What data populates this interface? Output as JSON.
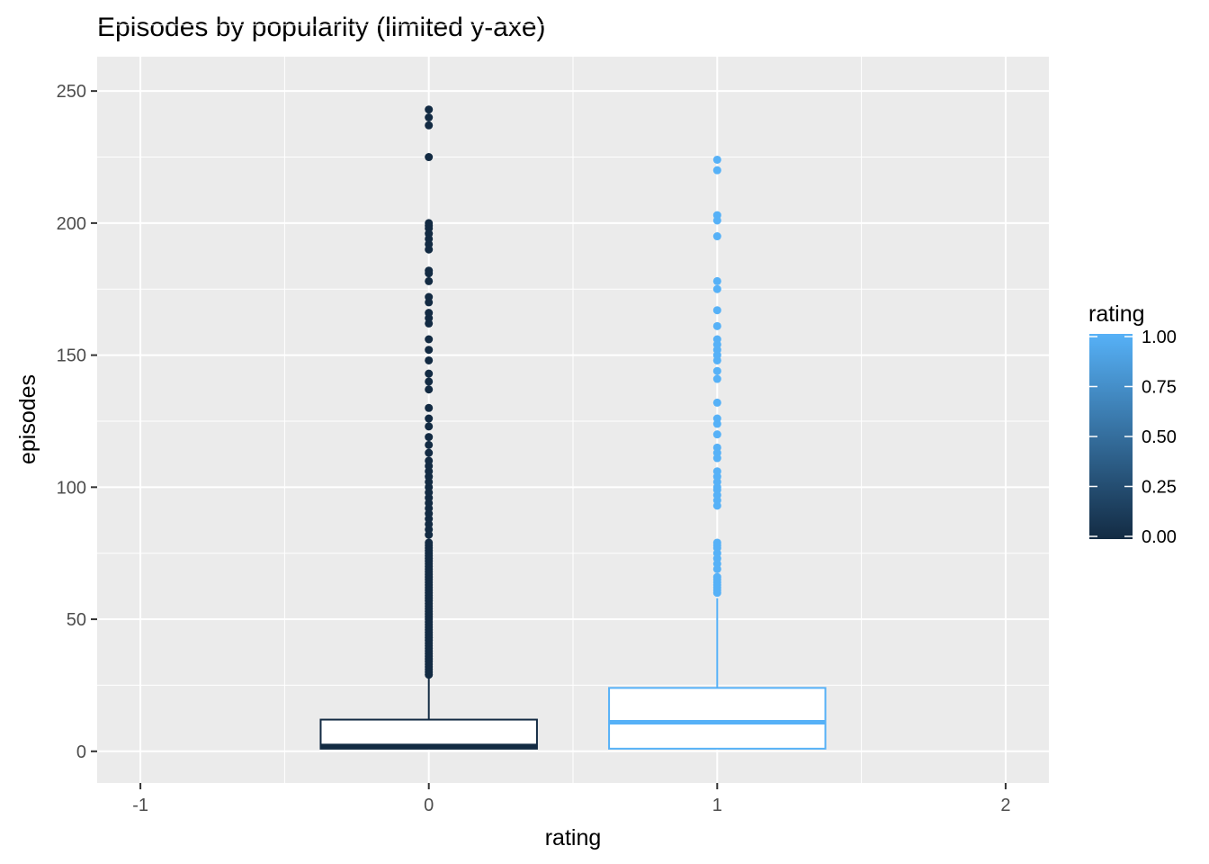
{
  "chart_data": {
    "type": "boxplot",
    "title": "Episodes by popularity (limited y-axe)",
    "xlabel": "rating",
    "ylabel": "episodes",
    "xlim": [
      -1.15,
      2.15
    ],
    "ylim": [
      -12,
      263
    ],
    "x_ticks": [
      -1,
      0,
      1,
      2
    ],
    "x_tick_labels": [
      "-1",
      "0",
      "1",
      "2"
    ],
    "y_ticks": [
      0,
      50,
      100,
      150,
      200,
      250
    ],
    "y_tick_labels": [
      "0",
      "50",
      "100",
      "150",
      "200",
      "250"
    ],
    "grid": true,
    "boxes": [
      {
        "x": 0,
        "color": "#132B43",
        "min": 1,
        "q1": 1,
        "median": 2,
        "q3": 12,
        "whisker_high": 28,
        "outliers": [
          29,
          30,
          31,
          32,
          33,
          34,
          35,
          36,
          37,
          38,
          39,
          40,
          41,
          42,
          43,
          44,
          45,
          46,
          47,
          48,
          49,
          50,
          51,
          52,
          53,
          54,
          55,
          56,
          57,
          58,
          59,
          60,
          61,
          62,
          63,
          64,
          65,
          66,
          67,
          68,
          69,
          70,
          71,
          72,
          73,
          74,
          75,
          76,
          77,
          78,
          79,
          82,
          84,
          86,
          88,
          90,
          92,
          94,
          96,
          98,
          100,
          102,
          104,
          106,
          108,
          110,
          113,
          116,
          119,
          123,
          126,
          130,
          137,
          140,
          143,
          148,
          152,
          156,
          162,
          164,
          166,
          170,
          172,
          178,
          181,
          182,
          190,
          192,
          194,
          196,
          198,
          199,
          200,
          225,
          237,
          240,
          243
        ]
      },
      {
        "x": 1,
        "color": "#56B1F7",
        "min": 1,
        "q1": 1,
        "median": 11,
        "q3": 24,
        "whisker_high": 58,
        "outliers": [
          60,
          61,
          62,
          63,
          64,
          65,
          66,
          69,
          71,
          73,
          75,
          77,
          78,
          79,
          93,
          95,
          97,
          99,
          100,
          102,
          104,
          106,
          111,
          113,
          115,
          120,
          124,
          126,
          132,
          141,
          144,
          148,
          150,
          152,
          154,
          156,
          161,
          167,
          175,
          178,
          195,
          201,
          203,
          220,
          224
        ]
      }
    ],
    "legend": {
      "title": "rating",
      "placement": "right",
      "type": "colorbar",
      "low_color": "#132B43",
      "high_color": "#56B1F7",
      "ticks": [
        0,
        0.25,
        0.5,
        0.75,
        1
      ],
      "tick_labels": [
        "0.00",
        "0.25",
        "0.50",
        "0.75",
        "1.00"
      ]
    }
  }
}
